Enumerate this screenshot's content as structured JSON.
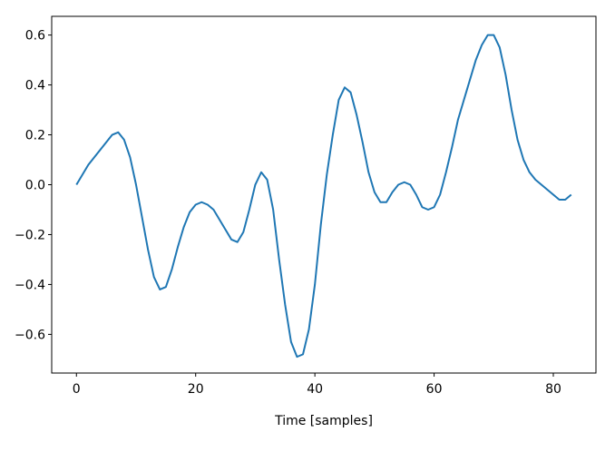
{
  "chart_data": {
    "type": "line",
    "xlabel": "Time [samples]",
    "x": [
      0,
      1,
      2,
      3,
      4,
      5,
      6,
      7,
      8,
      9,
      10,
      11,
      12,
      13,
      14,
      15,
      16,
      17,
      18,
      19,
      20,
      21,
      22,
      23,
      24,
      25,
      26,
      27,
      28,
      29,
      30,
      31,
      32,
      33,
      34,
      35,
      36,
      37,
      38,
      39,
      40,
      41,
      42,
      43,
      44,
      45,
      46,
      47,
      48,
      49,
      50,
      51,
      52,
      53,
      54,
      55,
      56,
      57,
      58,
      59,
      60,
      61,
      62,
      63,
      64,
      65,
      66,
      67,
      68,
      69,
      70,
      71,
      72,
      73,
      74,
      75,
      76,
      77,
      78,
      79,
      80,
      81,
      82,
      83
    ],
    "values": [
      0.0,
      0.04,
      0.08,
      0.11,
      0.14,
      0.17,
      0.2,
      0.21,
      0.18,
      0.11,
      0.0,
      -0.13,
      -0.26,
      -0.37,
      -0.42,
      -0.41,
      -0.34,
      -0.25,
      -0.17,
      -0.11,
      -0.08,
      -0.07,
      -0.08,
      -0.1,
      -0.14,
      -0.18,
      -0.22,
      -0.23,
      -0.19,
      -0.1,
      0.0,
      0.05,
      0.02,
      -0.1,
      -0.3,
      -0.48,
      -0.63,
      -0.69,
      -0.68,
      -0.58,
      -0.4,
      -0.16,
      0.04,
      0.2,
      0.34,
      0.39,
      0.37,
      0.28,
      0.17,
      0.05,
      -0.03,
      -0.07,
      -0.07,
      -0.03,
      0.0,
      0.01,
      0.0,
      -0.04,
      -0.09,
      -0.1,
      -0.09,
      -0.04,
      0.05,
      0.15,
      0.26,
      0.34,
      0.42,
      0.5,
      0.56,
      0.6,
      0.6,
      0.55,
      0.44,
      0.3,
      0.18,
      0.1,
      0.05,
      0.02,
      0.0,
      -0.02,
      -0.04,
      -0.06,
      -0.06,
      -0.04
    ],
    "color": "#1f77b4",
    "xlim": [
      -4.15,
      87.15
    ],
    "xticks": [
      0,
      20,
      40,
      60,
      80
    ],
    "ylim": [
      -0.755,
      0.675
    ],
    "yticks": [
      {
        "value": -0.6,
        "label": "−0.6"
      },
      {
        "value": -0.4,
        "label": "−0.4"
      },
      {
        "value": -0.2,
        "label": "−0.2"
      },
      {
        "value": 0,
        "label": "0.0"
      },
      0.2,
      0.4,
      0.6
    ]
  }
}
